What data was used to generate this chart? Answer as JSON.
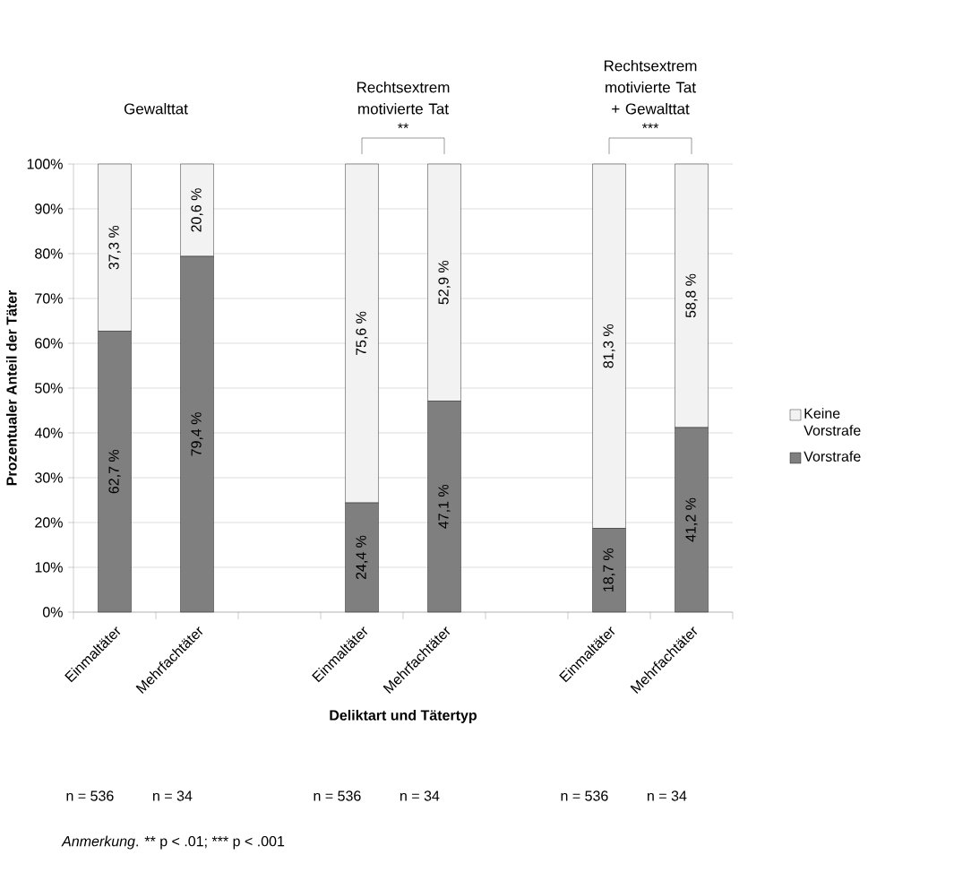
{
  "chart_data": {
    "type": "bar",
    "stacked": true,
    "categories": [
      "Einmaltäter",
      "Mehrfachtäter",
      null,
      "Einmaltäter",
      "Mehrfachtäter",
      null,
      "Einmaltäter",
      "Mehrfachtäter"
    ],
    "series": [
      {
        "name": "Vorstrafe",
        "color": "#7f7f7f",
        "values": [
          62.7,
          79.4,
          null,
          24.4,
          47.1,
          null,
          18.7,
          41.2
        ],
        "value_labels": [
          "62,7 %",
          "79,4 %",
          null,
          "24,4 %",
          "47,1 %",
          null,
          "18,7 %",
          "41,2 %"
        ]
      },
      {
        "name": "Keine Vorstrafe",
        "color": "#f2f2f2",
        "values": [
          37.3,
          20.6,
          null,
          75.6,
          52.9,
          null,
          81.3,
          58.8
        ],
        "value_labels": [
          "37,3 %",
          "20,6 %",
          null,
          "75,6 %",
          "52,9 %",
          null,
          "81,3 %",
          "58,8 %"
        ]
      }
    ],
    "ylim": [
      0,
      100
    ],
    "yticks": [
      {
        "value": 0,
        "label": "0%"
      },
      {
        "value": 10,
        "label": "10%"
      },
      {
        "value": 20,
        "label": "20%"
      },
      {
        "value": 30,
        "label": "30%"
      },
      {
        "value": 40,
        "label": "40%"
      },
      {
        "value": 50,
        "label": "50%"
      },
      {
        "value": 60,
        "label": "60%"
      },
      {
        "value": 70,
        "label": "70%"
      },
      {
        "value": 80,
        "label": "80%"
      },
      {
        "value": 90,
        "label": "90%"
      },
      {
        "value": 100,
        "label": "100%"
      }
    ],
    "xlabel": "Deliktart und Tätertyp",
    "ylabel": "Prozentualer Anteil der Täter",
    "grid": "y",
    "legend": "right",
    "annotations": [
      "Gewalttat",
      "Rechtsextrem motivierte Tat",
      "Rechtsextrem motivierte Tat + Gewalttat",
      "**",
      "***",
      "n = 536",
      "n = 34",
      "n = 536",
      "n = 34",
      "n = 536",
      "n = 34",
      "*Anmerkung*. ** p < .01; *** p < .001"
    ]
  }
}
